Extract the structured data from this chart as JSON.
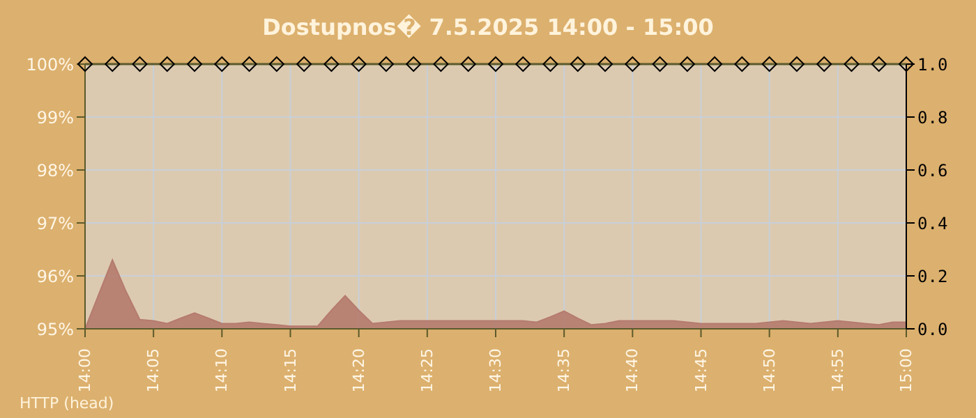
{
  "chart_data": {
    "type": "line",
    "title": "Dostupnos� 7.5.2025 14:00 - 15:00",
    "annotations": [
      "HTTP (head)"
    ],
    "series": [
      {
        "type": "area",
        "axis": "y2",
        "color": "#b57b6e",
        "marker": "none",
        "x": [
          "2025-05-07T14:00",
          "2025-05-07T14:01",
          "2025-05-07T14:02",
          "2025-05-07T14:03",
          "2025-05-07T14:04",
          "2025-05-07T14:05",
          "2025-05-07T14:06",
          "2025-05-07T14:07",
          "2025-05-07T14:08",
          "2025-05-07T14:09",
          "2025-05-07T14:10",
          "2025-05-07T14:11",
          "2025-05-07T14:12",
          "2025-05-07T14:13",
          "2025-05-07T14:14",
          "2025-05-07T14:15",
          "2025-05-07T14:16",
          "2025-05-07T14:17",
          "2025-05-07T14:18",
          "2025-05-07T14:19",
          "2025-05-07T14:20",
          "2025-05-07T14:21",
          "2025-05-07T14:22",
          "2025-05-07T14:23",
          "2025-05-07T14:24",
          "2025-05-07T14:25",
          "2025-05-07T14:26",
          "2025-05-07T14:27",
          "2025-05-07T14:28",
          "2025-05-07T14:29",
          "2025-05-07T14:30",
          "2025-05-07T14:31",
          "2025-05-07T14:32",
          "2025-05-07T14:33",
          "2025-05-07T14:34",
          "2025-05-07T14:35",
          "2025-05-07T14:36",
          "2025-05-07T14:37",
          "2025-05-07T14:38",
          "2025-05-07T14:39",
          "2025-05-07T14:40",
          "2025-05-07T14:41",
          "2025-05-07T14:42",
          "2025-05-07T14:43",
          "2025-05-07T14:44",
          "2025-05-07T14:45",
          "2025-05-07T14:46",
          "2025-05-07T14:47",
          "2025-05-07T14:48",
          "2025-05-07T14:49",
          "2025-05-07T14:50",
          "2025-05-07T14:51",
          "2025-05-07T14:52",
          "2025-05-07T14:53",
          "2025-05-07T14:54",
          "2025-05-07T14:55",
          "2025-05-07T14:56",
          "2025-05-07T14:57",
          "2025-05-07T14:58",
          "2025-05-07T14:59",
          "2025-05-07T15:00"
        ],
        "values": [
          0,
          0.13,
          0.26,
          0.14,
          0.035,
          0.03,
          0.02,
          0.04,
          0.06,
          0.04,
          0.02,
          0.02,
          0.025,
          0.02,
          0.015,
          0.01,
          0.01,
          0.01,
          0.07,
          0.125,
          0.07,
          0.02,
          0.025,
          0.03,
          0.03,
          0.03,
          0.03,
          0.03,
          0.03,
          0.03,
          0.03,
          0.03,
          0.03,
          0.025,
          0.045,
          0.067,
          0.04,
          0.015,
          0.02,
          0.03,
          0.03,
          0.03,
          0.03,
          0.03,
          0.025,
          0.02,
          0.02,
          0.02,
          0.02,
          0.02,
          0.025,
          0.03,
          0.025,
          0.02,
          0.025,
          0.03,
          0.025,
          0.02,
          0.015,
          0.025,
          0.025
        ]
      },
      {
        "axis": "y",
        "color": "#5b5a2c",
        "marker": "diamond",
        "x": [
          "2025-05-07T14:00",
          "2025-05-07T14:02",
          "2025-05-07T14:04",
          "2025-05-07T14:06",
          "2025-05-07T14:08",
          "2025-05-07T14:10",
          "2025-05-07T14:12",
          "2025-05-07T14:14",
          "2025-05-07T14:16",
          "2025-05-07T14:18",
          "2025-05-07T14:20",
          "2025-05-07T14:22",
          "2025-05-07T14:24",
          "2025-05-07T14:26",
          "2025-05-07T14:28",
          "2025-05-07T14:30",
          "2025-05-07T14:32",
          "2025-05-07T14:34",
          "2025-05-07T14:36",
          "2025-05-07T14:38",
          "2025-05-07T14:40",
          "2025-05-07T14:42",
          "2025-05-07T14:44",
          "2025-05-07T14:46",
          "2025-05-07T14:48",
          "2025-05-07T14:50",
          "2025-05-07T14:52",
          "2025-05-07T14:54",
          "2025-05-07T14:56",
          "2025-05-07T14:58",
          "2025-05-07T15:00"
        ],
        "values": [
          100,
          100,
          100,
          100,
          100,
          100,
          100,
          100,
          100,
          100,
          100,
          100,
          100,
          100,
          100,
          100,
          100,
          100,
          100,
          100,
          100,
          100,
          100,
          100,
          100,
          100,
          100,
          100,
          100,
          100,
          100
        ]
      }
    ],
    "xlim": [
      "2025-05-07T14:00",
      "2025-05-07T15:00"
    ],
    "xticks": [
      {
        "value": "2025-05-07T14:00",
        "label": "14:00"
      },
      {
        "value": "2025-05-07T14:05",
        "label": "14:05"
      },
      {
        "value": "2025-05-07T14:10",
        "label": "14:10"
      },
      {
        "value": "2025-05-07T14:15",
        "label": "14:15"
      },
      {
        "value": "2025-05-07T14:20",
        "label": "14:20"
      },
      {
        "value": "2025-05-07T14:25",
        "label": "14:25"
      },
      {
        "value": "2025-05-07T14:30",
        "label": "14:30"
      },
      {
        "value": "2025-05-07T14:35",
        "label": "14:35"
      },
      {
        "value": "2025-05-07T14:40",
        "label": "14:40"
      },
      {
        "value": "2025-05-07T14:45",
        "label": "14:45"
      },
      {
        "value": "2025-05-07T14:50",
        "label": "14:50"
      },
      {
        "value": "2025-05-07T14:55",
        "label": "14:55"
      },
      {
        "value": "2025-05-07T15:00",
        "label": "15:00"
      }
    ],
    "ylim": [
      95,
      100
    ],
    "yticks": [
      {
        "value": 95,
        "label": "95%"
      },
      {
        "value": 96,
        "label": "96%"
      },
      {
        "value": 97,
        "label": "97%"
      },
      {
        "value": 98,
        "label": "98%"
      },
      {
        "value": 99,
        "label": "99%"
      },
      {
        "value": 100,
        "label": "100%"
      }
    ],
    "y2lim": [
      0,
      1
    ],
    "y2ticks": [
      {
        "value": 0,
        "label": "0.0"
      },
      {
        "value": 0.2,
        "label": "0.2"
      },
      {
        "value": 0.4,
        "label": "0.4"
      },
      {
        "value": 0.6,
        "label": "0.6"
      },
      {
        "value": 0.8,
        "label": "0.8"
      },
      {
        "value": 1,
        "label": "1.0"
      }
    ],
    "grid": true,
    "legend": false
  }
}
